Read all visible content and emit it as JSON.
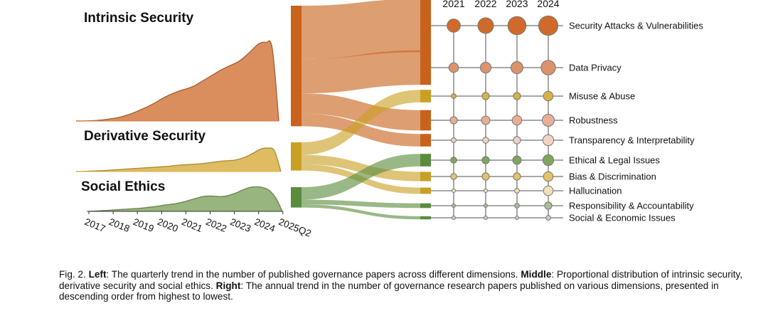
{
  "chart_data": [
    {
      "type": "area",
      "title": "",
      "x_ticks": [
        "2017",
        "2018",
        "2019",
        "2020",
        "2021",
        "2022",
        "2023",
        "2024",
        "2025Q2"
      ],
      "series": [
        {
          "name": "Intrinsic Security",
          "color": "#d47a42",
          "values": [
            0,
            0.2,
            0.5,
            1,
            2,
            4,
            6,
            9,
            13,
            18,
            24,
            30,
            37,
            45,
            52,
            58,
            63,
            67,
            72,
            80,
            88,
            96,
            104,
            111,
            117,
            124,
            135,
            148,
            160,
            162,
            150,
            0
          ]
        },
        {
          "name": "Derivative Security",
          "color": "#d9b046",
          "values": [
            0,
            0.2,
            0.4,
            0.7,
            1,
            1.5,
            2,
            2.5,
            3,
            3.5,
            4,
            4.5,
            5,
            5.5,
            6,
            7,
            7.5,
            8,
            8.5,
            9,
            10,
            11,
            12,
            12.5,
            13,
            15,
            18,
            22,
            26,
            27,
            24,
            0
          ]
        },
        {
          "name": "Social Ethics",
          "color": "#86a866",
          "values": [
            0,
            0.3,
            0.8,
            1.2,
            1.8,
            2.4,
            3,
            3.5,
            4,
            5,
            6,
            7,
            8.5,
            9.5,
            11,
            13,
            15.5,
            18,
            20,
            20.5,
            20,
            20,
            22,
            25,
            29,
            32,
            33,
            32,
            28,
            18,
            0
          ]
        }
      ]
    },
    {
      "type": "sankey",
      "sources": [
        {
          "name": "Intrinsic Security",
          "color": "#c8621c"
        },
        {
          "name": "Derivative Security",
          "color": "#caa024"
        },
        {
          "name": "Social Ethics",
          "color": "#5a8c3e"
        }
      ],
      "flows": [
        {
          "source": "Intrinsic Security",
          "target": "Security Attacks & Vulnerabilities",
          "value": 34
        },
        {
          "source": "Intrinsic Security",
          "target": "Data Privacy",
          "value": 22
        },
        {
          "source": "Intrinsic Security",
          "target": "Robustness",
          "value": 13
        },
        {
          "source": "Intrinsic Security",
          "target": "Transparency & Interpretability",
          "value": 8
        },
        {
          "source": "Derivative Security",
          "target": "Misuse & Abuse",
          "value": 8
        },
        {
          "source": "Derivative Security",
          "target": "Bias & Discrimination",
          "value": 6
        },
        {
          "source": "Derivative Security",
          "target": "Hallucination",
          "value": 4
        },
        {
          "source": "Social Ethics",
          "target": "Ethical & Legal Issues",
          "value": 8
        },
        {
          "source": "Social Ethics",
          "target": "Responsibility & Accountability",
          "value": 3
        },
        {
          "source": "Social Ethics",
          "target": "Social & Economic Issues",
          "value": 2
        }
      ]
    },
    {
      "type": "bubble-grid",
      "years": [
        "2021",
        "2022",
        "2023",
        "2024"
      ],
      "topics": [
        {
          "name": "Security Attacks & Vulnerabilities",
          "color": "#d06a2a",
          "values": [
            11,
            13,
            15,
            16
          ]
        },
        {
          "name": "Data Privacy",
          "color": "#dc926a",
          "values": [
            8,
            9,
            10,
            12
          ]
        },
        {
          "name": "Misuse & Abuse",
          "color": "#d9b046",
          "values": [
            4,
            6,
            6,
            8
          ]
        },
        {
          "name": "Robustness",
          "color": "#e6ae94",
          "values": [
            6,
            7,
            8,
            10
          ]
        },
        {
          "name": "Transparency & Interpretability",
          "color": "#f0d3c3",
          "values": [
            4,
            5,
            6,
            9
          ]
        },
        {
          "name": "Ethical & Legal Issues",
          "color": "#80a55c",
          "values": [
            5,
            6,
            7,
            9
          ]
        },
        {
          "name": "Bias & Discrimination",
          "color": "#e2c26c",
          "values": [
            5,
            6,
            6,
            8
          ]
        },
        {
          "name": "Hallucination",
          "color": "#f0e0b6",
          "values": [
            3,
            3,
            4,
            8
          ]
        },
        {
          "name": "Responsibility & Accountability",
          "color": "#a6c097",
          "values": [
            3,
            3,
            4,
            6
          ]
        },
        {
          "name": "Social & Economic Issues",
          "color": "#c6d4b9",
          "values": [
            3,
            3,
            3,
            4
          ]
        }
      ]
    }
  ],
  "caption": {
    "prefix": "Fig. 2. ",
    "left_label": "Left",
    "left_text": ": The quarterly trend in the number of published governance papers across different dimensions. ",
    "middle_label": "Middle",
    "middle_text": ": Proportional distribution of intrinsic security, derivative security and social ethics. ",
    "right_label": "Right",
    "right_text": ": The annual trend in the number of governance research papers published on various dimensions, presented in descending order from highest to lowest."
  }
}
